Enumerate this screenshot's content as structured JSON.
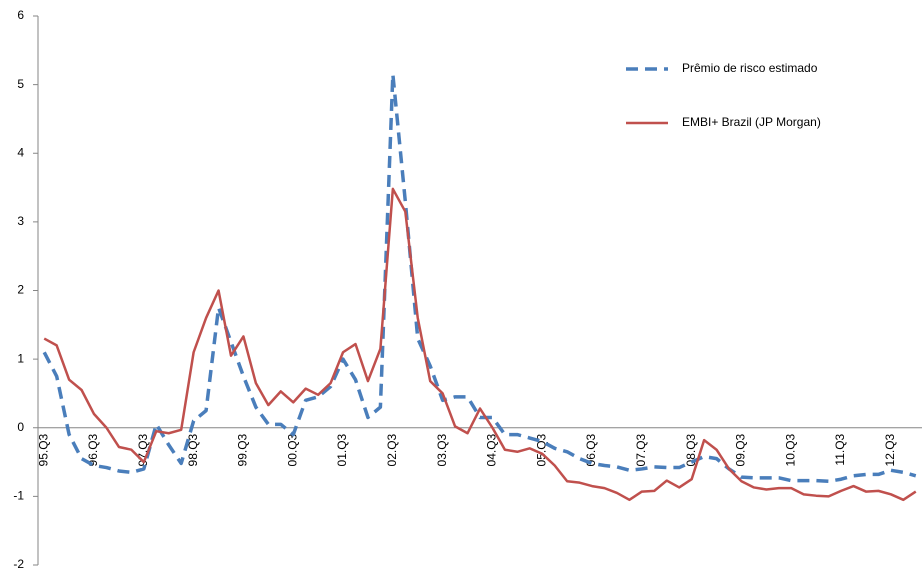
{
  "chart_data": {
    "type": "line",
    "categories": [
      "95.Q3",
      null,
      null,
      null,
      "96.Q3",
      null,
      null,
      null,
      "97.Q3",
      null,
      null,
      null,
      "98.Q3",
      null,
      null,
      null,
      "99.Q3",
      null,
      null,
      null,
      "00.Q3",
      null,
      null,
      null,
      "01.Q3",
      null,
      null,
      null,
      "02.Q3",
      null,
      null,
      null,
      "03.Q3",
      null,
      null,
      null,
      "04.Q3",
      null,
      null,
      null,
      "05.Q3",
      null,
      null,
      null,
      "06.Q3",
      null,
      null,
      null,
      "07.Q3",
      null,
      null,
      null,
      "08.Q3",
      null,
      null,
      null,
      "09.Q3",
      null,
      null,
      null,
      "10.Q3",
      null,
      null,
      null,
      "11.Q3",
      null,
      null,
      null,
      "12.Q3",
      null,
      null
    ],
    "series": [
      {
        "name": "Prêmio de risco estimado",
        "color": "#4a7ebb",
        "dashed": true,
        "values": [
          1.1,
          0.75,
          -0.1,
          -0.45,
          -0.55,
          -0.58,
          -0.63,
          -0.65,
          -0.6,
          0.05,
          -0.25,
          -0.52,
          0.1,
          0.25,
          1.75,
          1.25,
          0.75,
          0.3,
          0.05,
          0.05,
          -0.1,
          0.4,
          0.45,
          0.6,
          1.0,
          0.7,
          0.15,
          0.3,
          5.15,
          3.3,
          1.3,
          0.9,
          0.4,
          0.45,
          0.45,
          0.15,
          0.15,
          -0.1,
          -0.1,
          -0.15,
          -0.2,
          -0.3,
          -0.35,
          -0.45,
          -0.52,
          -0.55,
          -0.57,
          -0.62,
          -0.6,
          -0.57,
          -0.58,
          -0.58,
          -0.5,
          -0.42,
          -0.45,
          -0.6,
          -0.72,
          -0.73,
          -0.73,
          -0.73,
          -0.77,
          -0.77,
          -0.77,
          -0.78,
          -0.75,
          -0.7,
          -0.68,
          -0.68,
          -0.62,
          -0.65,
          -0.7
        ]
      },
      {
        "name": "EMBI+ Brazil (JP Morgan)",
        "color": "#c0504d",
        "dashed": false,
        "values": [
          1.3,
          1.2,
          0.7,
          0.55,
          0.2,
          0.0,
          -0.28,
          -0.32,
          -0.5,
          -0.05,
          -0.08,
          -0.03,
          1.1,
          1.6,
          2.0,
          1.05,
          1.33,
          0.65,
          0.33,
          0.53,
          0.37,
          0.57,
          0.48,
          0.65,
          1.1,
          1.22,
          0.68,
          1.15,
          3.48,
          3.15,
          1.6,
          0.68,
          0.5,
          0.02,
          -0.08,
          0.28,
          0.0,
          -0.32,
          -0.35,
          -0.3,
          -0.38,
          -0.55,
          -0.78,
          -0.8,
          -0.85,
          -0.88,
          -0.95,
          -1.05,
          -0.93,
          -0.92,
          -0.77,
          -0.87,
          -0.75,
          -0.18,
          -0.32,
          -0.6,
          -0.78,
          -0.87,
          -0.9,
          -0.88,
          -0.88,
          -0.97,
          -0.99,
          -1.0,
          -0.92,
          -0.85,
          -0.93,
          -0.92,
          -0.97,
          -1.05,
          -0.93
        ]
      }
    ],
    "ylim": [
      -2,
      6
    ],
    "yticks": [
      -2,
      -1,
      0,
      1,
      2,
      3,
      4,
      5,
      6
    ],
    "grid": false,
    "legend": "right"
  }
}
